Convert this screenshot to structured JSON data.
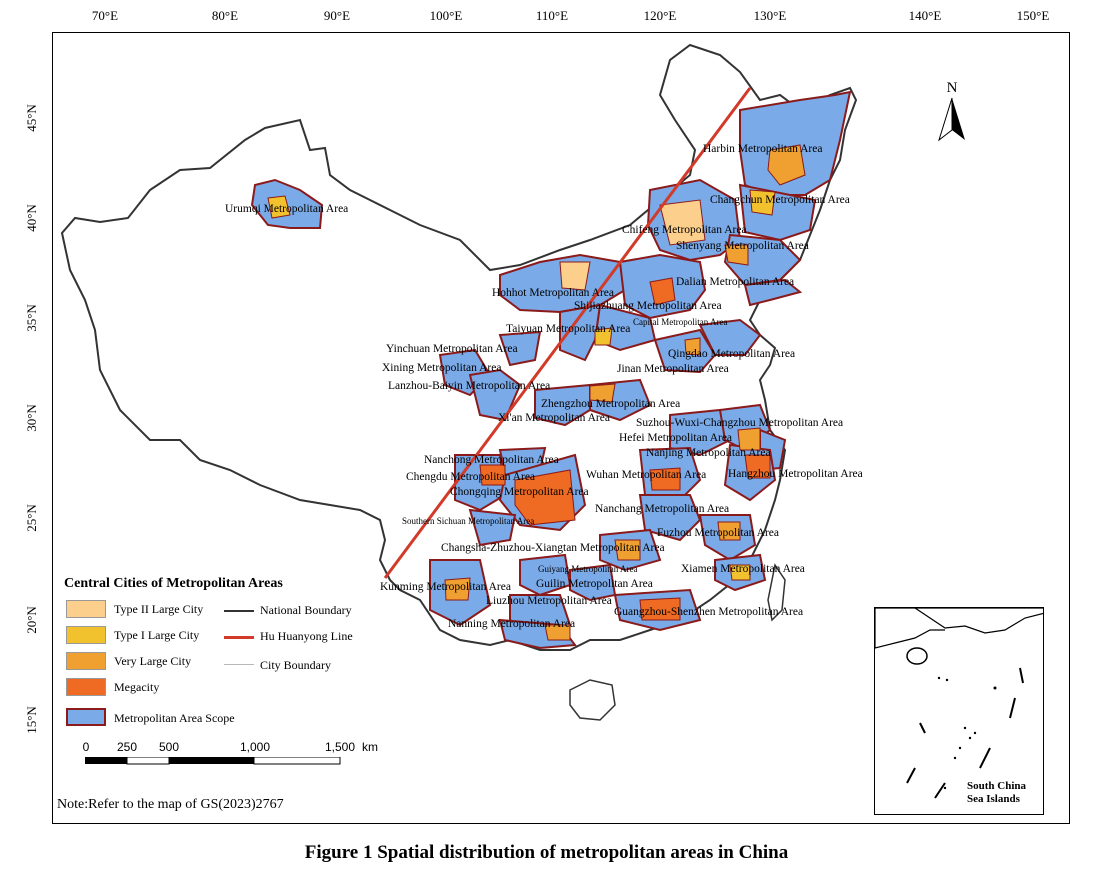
{
  "figure": {
    "caption": "Figure 1  Spatial distribution of metropolitan areas in China",
    "note": "Note:Refer to the map of GS(2023)2767"
  },
  "axes": {
    "longitude_ticks": [
      "70°E",
      "80°E",
      "90°E",
      "100°E",
      "110°E",
      "120°E",
      "130°E",
      "140°E",
      "150°E"
    ],
    "latitude_ticks": [
      "45°N",
      "40°N",
      "35°N",
      "30°N",
      "25°N",
      "20°N",
      "15°N"
    ]
  },
  "north_arrow": {
    "label": "N"
  },
  "metropolitan_areas": [
    "Harbin Metropolitan Area",
    "Urumqi Metropolitan Area",
    "Changchun Metropolitan Area",
    "Chifeng Metropolitan Area",
    "Shenyang Metropolitan Area",
    "Dalian Metropolitan Area",
    "Hohhot Metropolitan Area",
    "Shijiazhuang Metropolitan Area",
    "Capital Metropolitan Area",
    "Taiyuan Metropolitan Area",
    "Yinchuan Metropolitan Area",
    "Qingdao Metropolitan Area",
    "Xining Metropolitan Area",
    "Jinan Metropolitan Area",
    "Lanzhou-Baiyin Metropolitan Area",
    "Zhengzhou Metropolitan Area",
    "Xi'an Metropolitan Area",
    "Suzhou-Wuxi-Changzhou Metropolitan Area",
    "Hefei Metropolitan Area",
    "Nanchong Metropolitan Area",
    "Nanjing Metropolitan Area",
    "Chengdu Metropolitan Area",
    "Wuhan Metropolitan Area",
    "Hangzhou Metropolitan Area",
    "Chongqing Metropolitan Area",
    "Nanchang Metropolitan Area",
    "Southern Sichuan Metropolitan Area",
    "Fuzhou Metropolitan Area",
    "Changsha-Zhuzhou-Xiangtan Metropolitan Area",
    "Guiyang Metropolitan Area",
    "Xiamen Metropolitan Area",
    "Kunming Metropolitan Area",
    "Guilin Metropolitan Area",
    "Liuzhou Metropolitan Area",
    "Guangzhou-Shenzhen Metropolitan Area",
    "Nanning Metropolitan Area"
  ],
  "legend": {
    "title": "Central Cities of Metropolitan Areas",
    "categories": [
      {
        "label": "Type II Large City",
        "color": "#fcd08c"
      },
      {
        "label": "Type I Large City",
        "color": "#f2c12e"
      },
      {
        "label": "Very Large City",
        "color": "#f0a030"
      },
      {
        "label": "Megacity",
        "color": "#ef6a22"
      },
      {
        "label": "Metropolitan Area Scope",
        "color": "#7aaae8",
        "border": "#8b1a1a"
      }
    ],
    "lines": [
      {
        "label": "National Boundary",
        "color": "#333333"
      },
      {
        "label": "Hu Huanyong Line",
        "color": "#d23a2a"
      },
      {
        "label": "City Boundary",
        "color": "#b8b8b8"
      }
    ]
  },
  "scale_bar": {
    "labels": [
      "0",
      "250",
      "500",
      "1,000",
      "1,500"
    ],
    "unit": "km"
  },
  "inset": {
    "label": "South China\nSea Islands"
  }
}
